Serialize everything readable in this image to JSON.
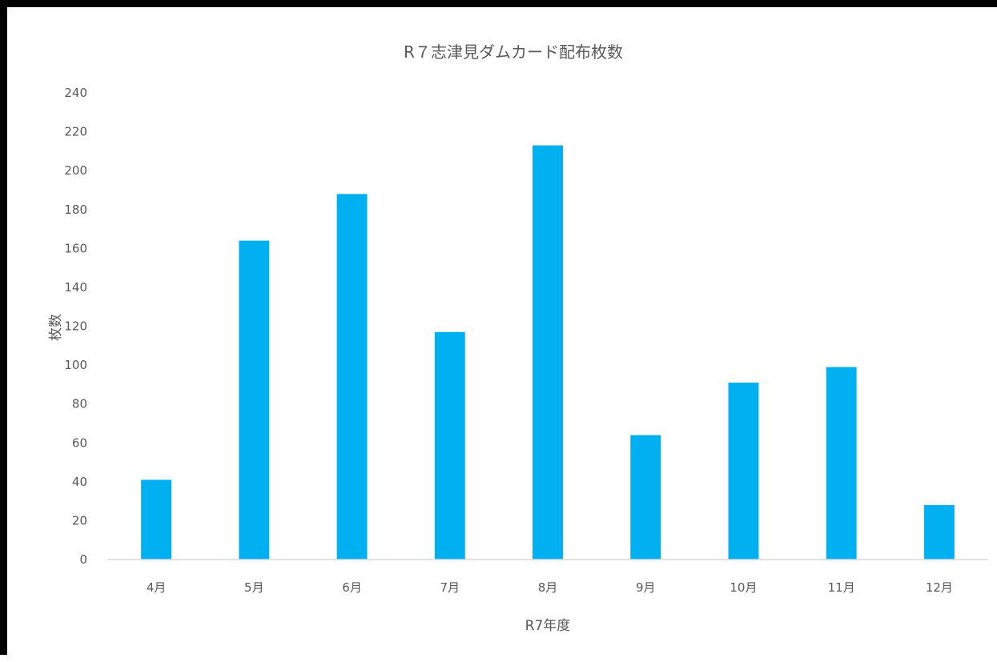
{
  "chart_data": {
    "type": "bar",
    "title": "R７志津見ダムカード配布枚数",
    "xlabel": "R7年度",
    "ylabel": "枚数",
    "categories": [
      "4月",
      "5月",
      "6月",
      "7月",
      "8月",
      "9月",
      "10月",
      "11月",
      "12月"
    ],
    "values": [
      41,
      164,
      188,
      117,
      213,
      64,
      91,
      99,
      28
    ],
    "ylim": [
      0,
      240
    ],
    "yticks": [
      0,
      20,
      40,
      60,
      80,
      100,
      120,
      140,
      160,
      180,
      200,
      220,
      240
    ],
    "grid": false,
    "legend": "none",
    "colors": {
      "bar": "#00b0f0",
      "text": "#595959",
      "axis": "#d9d9d9",
      "frame": "#000000"
    }
  }
}
